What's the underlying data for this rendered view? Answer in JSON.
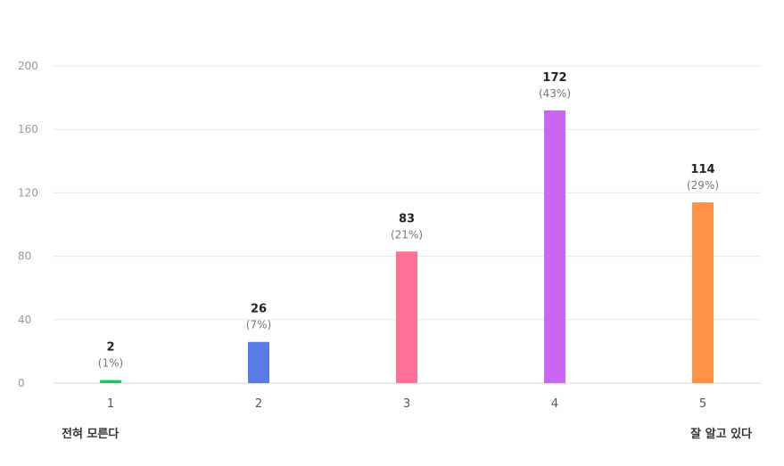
{
  "chart_data": {
    "type": "bar",
    "categories": [
      "1",
      "2",
      "3",
      "4",
      "5"
    ],
    "values": [
      2,
      26,
      83,
      172,
      114
    ],
    "percent_labels": [
      "(1%)",
      "(7%)",
      "(21%)",
      "(43%)",
      "(29%)"
    ],
    "colors": [
      "#22c55e",
      "#5b7be8",
      "#ff7096",
      "#c966f5",
      "#ff9244"
    ],
    "yticks": [
      0,
      40,
      80,
      120,
      160,
      200
    ],
    "ylim": [
      0,
      200
    ],
    "grid": true
  },
  "scale_labels": {
    "min": "전혀 모른다",
    "max": "잘 알고 있다"
  }
}
